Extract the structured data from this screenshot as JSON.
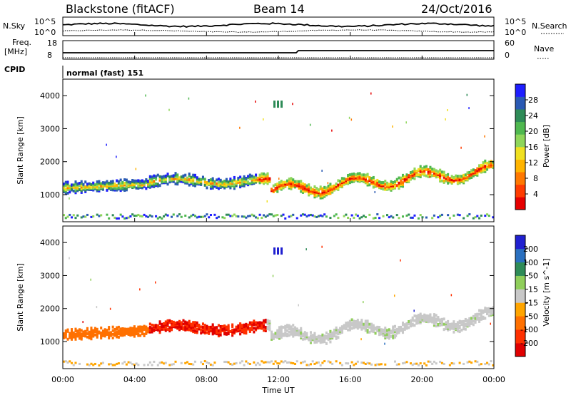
{
  "header": {
    "station": "Blackstone (fitACF)",
    "beam": "Beam 14",
    "date": "24/Oct/2016"
  },
  "summary": {
    "nsky_label": "N.Sky",
    "nsearch_label": "N.Search",
    "scale_hi": "10^5",
    "scale_lo": "10^0",
    "freq_label_1": "Freq.",
    "freq_label_2": "[MHz]",
    "freq_ticks": [
      "18",
      "8"
    ],
    "nave_label": "Nave",
    "nave_ticks": [
      "60",
      "0"
    ],
    "cpid_label": "CPID",
    "cpid_value": "normal (fast) 151"
  },
  "colors": {
    "power": [
      "#1e1eff",
      "#2a5ab4",
      "#2e8b57",
      "#4fb84f",
      "#8fd65a",
      "#f0e020",
      "#ffb400",
      "#ff7800",
      "#ff3c00",
      "#e60000"
    ],
    "velocity": [
      "#2020d0",
      "#2a70c0",
      "#2e8b57",
      "#8fce5a",
      "#c8c8c8",
      "#ffa500",
      "#ff7000",
      "#ff3000",
      "#e00000"
    ]
  },
  "chart_data": [
    {
      "type": "heatmap",
      "panel": "power",
      "ylabel": "Slant Range [km]",
      "yticks": [
        "4000",
        "3000",
        "2000",
        "1000"
      ],
      "ylim": [
        180,
        4500
      ],
      "colorbar_label": "Power [dB]",
      "colorbar_ticks": [
        "28",
        "24",
        "20",
        "16",
        "12",
        "8",
        "4"
      ],
      "colorbar_range": [
        0,
        32
      ]
    },
    {
      "type": "heatmap",
      "panel": "velocity",
      "ylabel": "Slant Range [km]",
      "yticks": [
        "4000",
        "3000",
        "2000",
        "1000"
      ],
      "ylim": [
        180,
        4500
      ],
      "colorbar_label": "Velocity [m s^-1]",
      "colorbar_ticks": [
        "200",
        "100",
        "50",
        "15",
        "-15",
        "-50",
        "-100",
        "-200"
      ]
    }
  ],
  "xaxis": {
    "label": "Time UT",
    "ticks": [
      "00:00",
      "04:00",
      "08:00",
      "12:00",
      "16:00",
      "20:00",
      "00:00"
    ]
  }
}
